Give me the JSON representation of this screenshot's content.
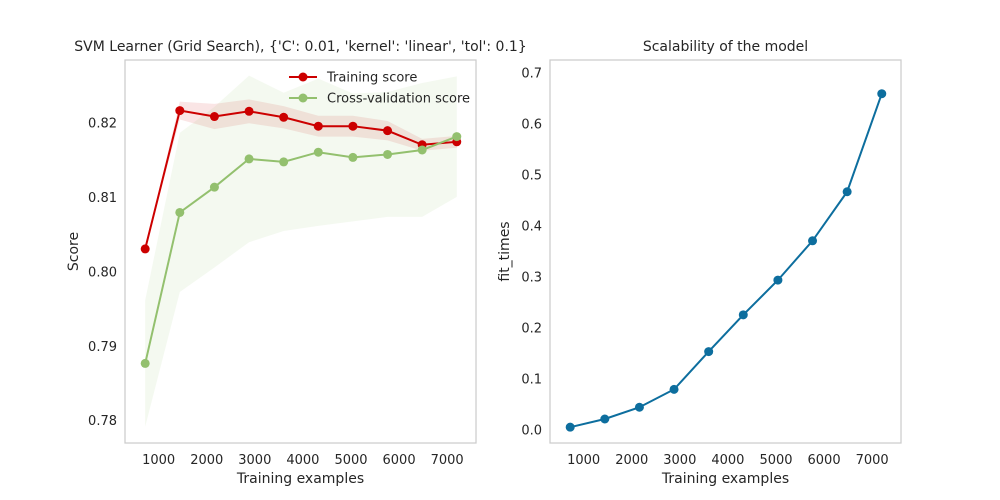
{
  "chart_data": [
    {
      "type": "line",
      "title": "SVM Learner (Grid Search), {'C': 0.01, 'kernel': 'linear', 'tol': 0.1}",
      "xlabel": "Training examples",
      "ylabel": "Score",
      "xlim": [
        300,
        7600
      ],
      "ylim": [
        0.777,
        0.8285
      ],
      "xticks": [
        1000,
        2000,
        3000,
        4000,
        5000,
        6000,
        7000
      ],
      "yticks": [
        0.78,
        0.79,
        0.8,
        0.81,
        0.82
      ],
      "grid": false,
      "legend_position": "top-right",
      "x": [
        720,
        1440,
        2160,
        2880,
        3600,
        4320,
        5040,
        5760,
        6480,
        7200
      ],
      "series": [
        {
          "name": "Training score",
          "color": "#cc0000",
          "values": [
            0.8031,
            0.8217,
            0.8209,
            0.8216,
            0.8208,
            0.8196,
            0.8196,
            0.819,
            0.8171,
            0.8175
          ],
          "band_lower": [
            0.8031,
            0.8205,
            0.8192,
            0.82,
            0.8193,
            0.8182,
            0.8182,
            0.8177,
            0.8163,
            0.8167
          ],
          "band_upper": [
            0.8031,
            0.8229,
            0.8226,
            0.8232,
            0.8223,
            0.821,
            0.821,
            0.8203,
            0.8179,
            0.8183
          ]
        },
        {
          "name": "Cross-validation score",
          "color": "#93c06e",
          "values": [
            0.7877,
            0.808,
            0.8114,
            0.8152,
            0.8148,
            0.8161,
            0.8154,
            0.8158,
            0.8164,
            0.8182
          ],
          "band_lower": [
            0.7792,
            0.7973,
            0.8006,
            0.804,
            0.8055,
            0.8062,
            0.8068,
            0.8074,
            0.8074,
            0.8101
          ],
          "band_upper": [
            0.7962,
            0.8187,
            0.8222,
            0.8264,
            0.8241,
            0.826,
            0.824,
            0.8242,
            0.8254,
            0.8263
          ]
        }
      ]
    },
    {
      "type": "line",
      "title": "Scalability of the model",
      "xlabel": "Training examples",
      "ylabel": "fit_times",
      "xlim": [
        300,
        7600
      ],
      "ylim": [
        -0.025,
        0.725
      ],
      "xticks": [
        1000,
        2000,
        3000,
        4000,
        5000,
        6000,
        7000
      ],
      "yticks": [
        0.0,
        0.1,
        0.2,
        0.3,
        0.4,
        0.5,
        0.6,
        0.7
      ],
      "grid": false,
      "x": [
        720,
        1440,
        2160,
        2880,
        3600,
        4320,
        5040,
        5760,
        6480,
        7200
      ],
      "series": [
        {
          "color": "#0d6e9e",
          "values": [
            0.006,
            0.022,
            0.045,
            0.08,
            0.154,
            0.226,
            0.294,
            0.371,
            0.467,
            0.659
          ]
        }
      ]
    }
  ]
}
